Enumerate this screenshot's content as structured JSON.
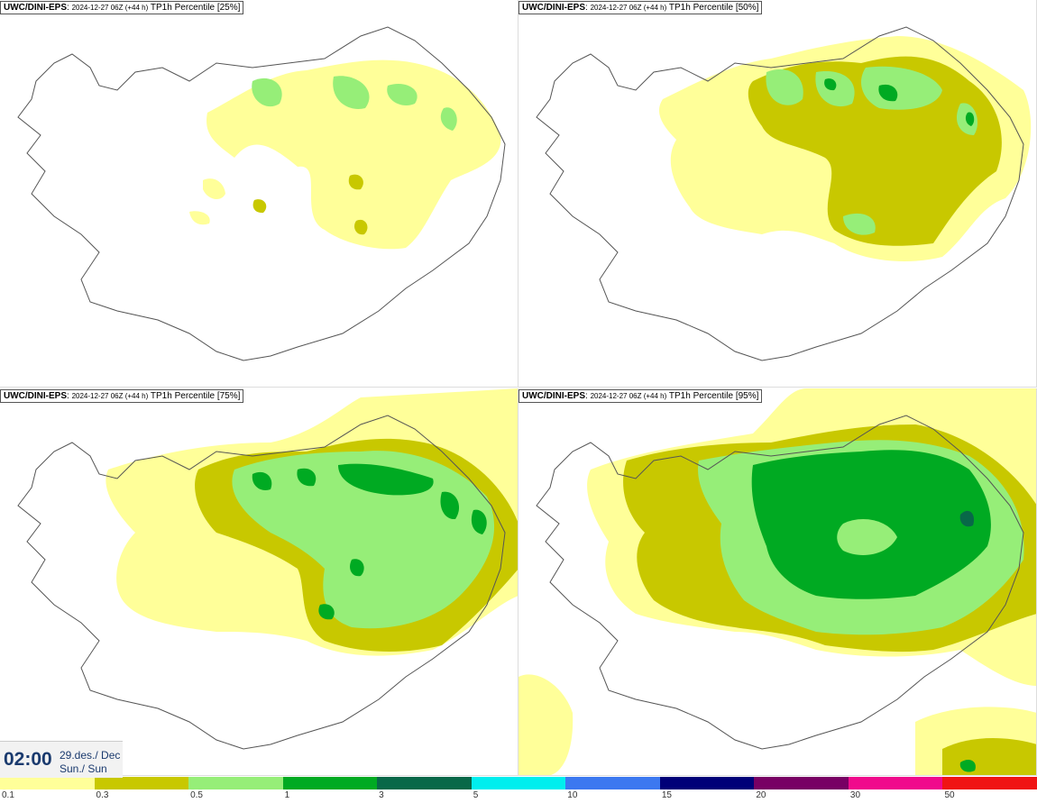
{
  "panels": [
    {
      "model": "UWC/DINI-EPS",
      "meta": "2024-12-27 06Z (+44 h)",
      "variable": "TP1h Percentile [25%]"
    },
    {
      "model": "UWC/DINI-EPS",
      "meta": "2024-12-27 06Z (+44 h)",
      "variable": "TP1h Percentile [50%]"
    },
    {
      "model": "UWC/DINI-EPS",
      "meta": "2024-12-27 06Z (+44 h)",
      "variable": "TP1h Percentile [75%]"
    },
    {
      "model": "UWC/DINI-EPS",
      "meta": "2024-12-27 06Z (+44 h)",
      "variable": "TP1h Percentile [95%]"
    }
  ],
  "valid": {
    "time": "02:00",
    "date": "29.des./ Dec",
    "day": "Sun./ Sun"
  },
  "colorscale": [
    {
      "label": "0.1",
      "color": "#ffff99"
    },
    {
      "label": "0.3",
      "color": "#c8c800"
    },
    {
      "label": "0.5",
      "color": "#96ee78"
    },
    {
      "label": "1",
      "color": "#00aa22"
    },
    {
      "label": "3",
      "color": "#086848"
    },
    {
      "label": "5",
      "color": "#00eeee"
    },
    {
      "label": "10",
      "color": "#3c78f0"
    },
    {
      "label": "15",
      "color": "#000078"
    },
    {
      "label": "20",
      "color": "#780064"
    },
    {
      "label": "30",
      "color": "#f00a8c"
    },
    {
      "label": "50",
      "color": "#f01414"
    }
  ],
  "icons": {
    "map": "iceland-outline-map"
  }
}
